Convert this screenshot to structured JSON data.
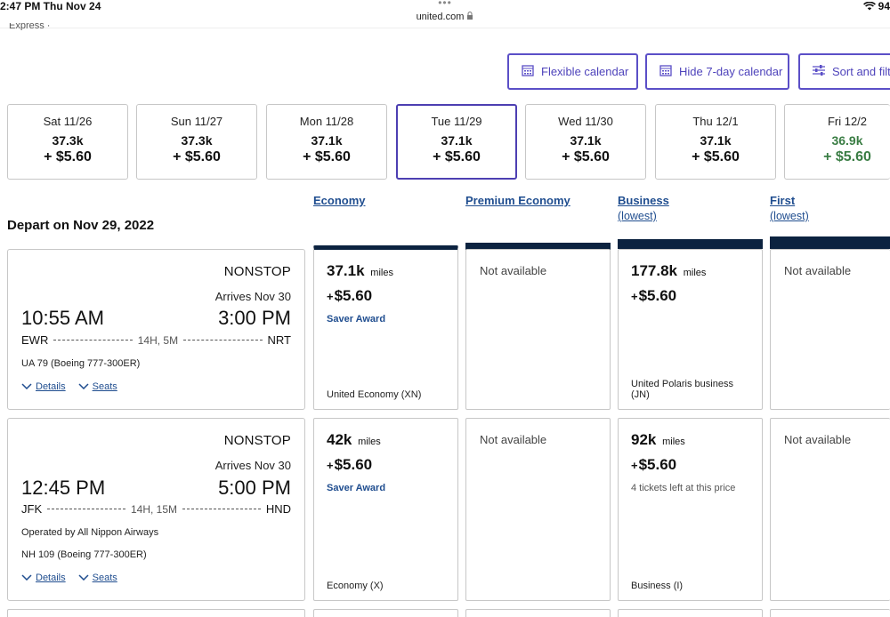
{
  "status_bar": {
    "time_date": "2:47 PM   Thu Nov 24",
    "dots": "•••",
    "url": "united.com",
    "battery": "94"
  },
  "cutoff_text": "Express ·",
  "toolbar": {
    "flexible_calendar": "Flexible calendar",
    "hide_calendar": "Hide 7-day calendar",
    "sort_filter": "Sort and filt"
  },
  "dates": [
    {
      "day": "Sat 11/26",
      "miles": "37.3k",
      "fee": "+ $5.60"
    },
    {
      "day": "Sun 11/27",
      "miles": "37.3k",
      "fee": "+ $5.60"
    },
    {
      "day": "Mon 11/28",
      "miles": "37.1k",
      "fee": "+ $5.60"
    },
    {
      "day": "Tue 11/29",
      "miles": "37.1k",
      "fee": "+ $5.60"
    },
    {
      "day": "Wed 11/30",
      "miles": "37.1k",
      "fee": "+ $5.60"
    },
    {
      "day": "Thu 12/1",
      "miles": "37.1k",
      "fee": "+ $5.60"
    },
    {
      "day": "Fri 12/2",
      "miles": "36.9k",
      "fee": "+ $5.60"
    }
  ],
  "selected_date_index": 3,
  "colors": {
    "accent": "#5b4fc7",
    "link": "#1f4d8f",
    "navy": "#0c2340",
    "green": "#3a7d44"
  },
  "depart_title": "Depart on Nov 29, 2022",
  "cabins": {
    "economy": "Economy",
    "premium": "Premium Economy",
    "business": "Business",
    "business_sub": "(lowest)",
    "first": "First",
    "first_sub": "(lowest)"
  },
  "flights": [
    {
      "nonstop": "NONSTOP",
      "arrives": "Arrives Nov 30",
      "dep_time": "10:55 AM",
      "arr_time": "3:00 PM",
      "origin": "EWR",
      "duration": "14H, 5M",
      "destination": "NRT",
      "operated_by": "",
      "flight_no": "UA 79 (Boeing 777-300ER)",
      "details": "Details",
      "seats": "Seats",
      "economy": {
        "miles": "37.1k",
        "unit": "miles",
        "fee": "$5.60",
        "award": "Saver Award",
        "class": "United Economy (XN)"
      },
      "premium": {
        "na": "Not available"
      },
      "business": {
        "miles": "177.8k",
        "unit": "miles",
        "fee": "$5.60",
        "class": "United Polaris business (JN)"
      },
      "first": {
        "na": "Not available"
      }
    },
    {
      "nonstop": "NONSTOP",
      "arrives": "Arrives Nov 30",
      "dep_time": "12:45 PM",
      "arr_time": "5:00 PM",
      "origin": "JFK",
      "duration": "14H, 15M",
      "destination": "HND",
      "operated_by": "Operated by All Nippon Airways",
      "flight_no": "NH 109 (Boeing 777-300ER)",
      "details": "Details",
      "seats": "Seats",
      "economy": {
        "miles": "42k",
        "unit": "miles",
        "fee": "$5.60",
        "award": "Saver Award",
        "class": "Economy (X)"
      },
      "premium": {
        "na": "Not available"
      },
      "business": {
        "miles": "92k",
        "unit": "miles",
        "fee": "$5.60",
        "note": "4 tickets left at this price",
        "class": "Business (I)"
      },
      "first": {
        "na": "Not available"
      }
    }
  ]
}
